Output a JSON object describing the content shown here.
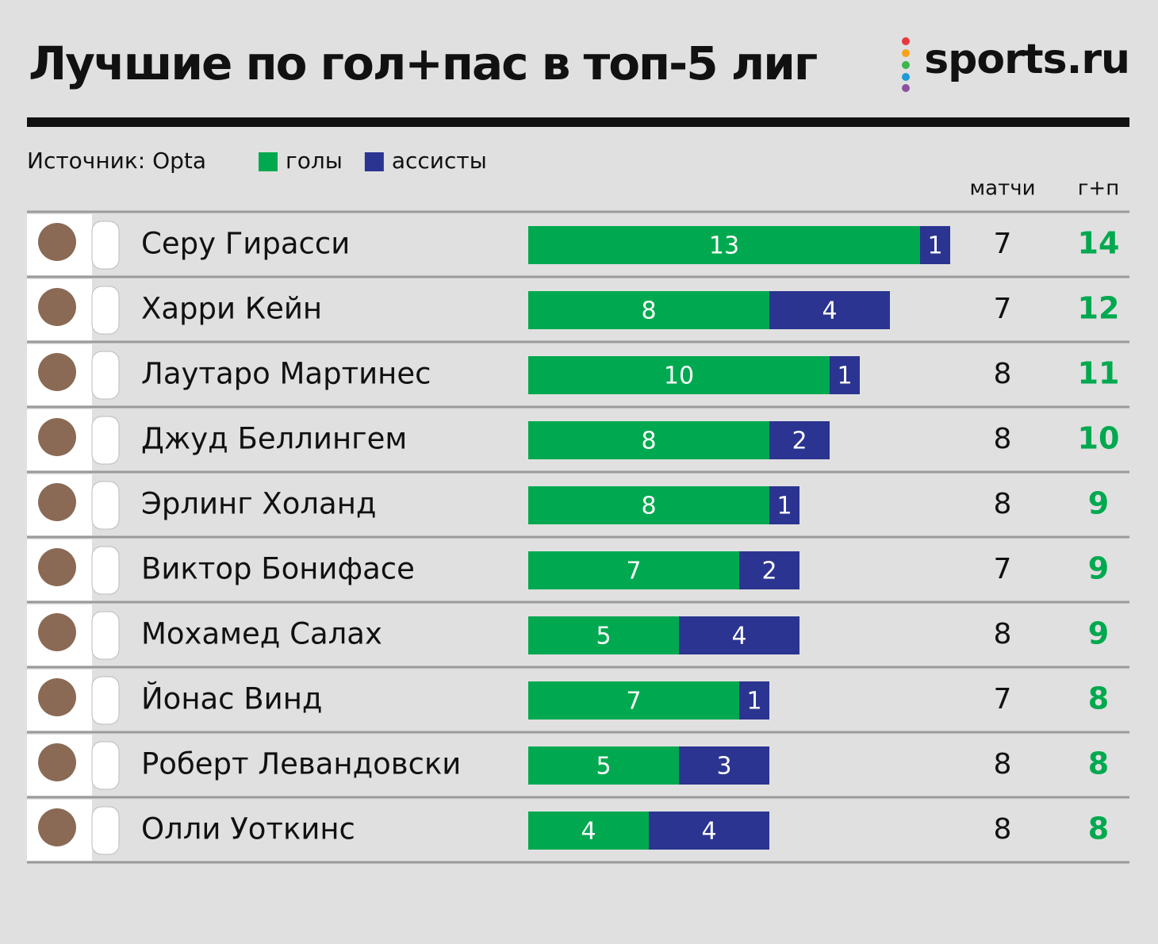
{
  "chart_data": {
    "type": "bar",
    "title": "Лучшие по гол+пас в топ-5 лиг",
    "brand": "sports.ru",
    "source": "Источник: Opta",
    "orientation": "horizontal",
    "stacked": true,
    "categories": [
      "Серу Гирасси",
      "Харри Кейн",
      "Лаутаро Мартинес",
      "Джуд Беллингем",
      "Эрлинг Холанд",
      "Виктор Бонифасе",
      "Мохамед Салах",
      "Йонас Винд",
      "Роберт Левандовски",
      "Олли Уоткинс"
    ],
    "series": [
      {
        "name": "голы",
        "color": "#00a94f",
        "values": [
          13,
          8,
          10,
          8,
          8,
          7,
          5,
          7,
          5,
          4
        ]
      },
      {
        "name": "ассисты",
        "color": "#2b3490",
        "values": [
          1,
          4,
          1,
          2,
          1,
          2,
          4,
          1,
          3,
          4
        ]
      }
    ],
    "matches_label": "матчи",
    "matches": [
      7,
      7,
      8,
      8,
      8,
      7,
      8,
      7,
      8,
      8
    ],
    "totals_label": "г+п",
    "totals": [
      14,
      12,
      11,
      10,
      9,
      9,
      9,
      8,
      8,
      8
    ],
    "totals_color": "#00a94f"
  }
}
